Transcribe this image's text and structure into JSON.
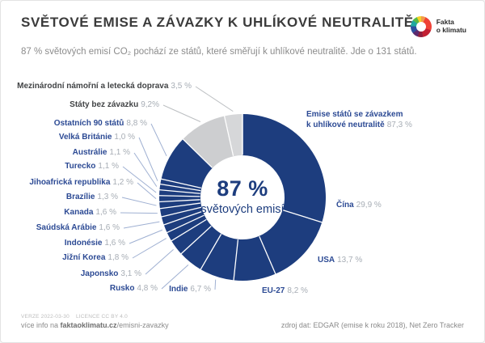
{
  "brand": {
    "name_line1": "Fakta",
    "name_line2": "o klimatu"
  },
  "header": {
    "title": "SVĚTOVÉ EMISE A ZÁVAZKY K UHLÍKOVÉ NEUTRALITĚ",
    "subtitle": "87 % světových emisí CO₂ pochází ze států, které směřují k uhlíkové neutralitě. Jde o 131 států."
  },
  "chart_data": {
    "type": "pie",
    "variant": "donut",
    "unit": "% světových emisí CO₂",
    "center_label": {
      "headline": "87 %",
      "caption": "světových emisí"
    },
    "total_annotation": {
      "name": "Emise států se závazkem\nk uhlíkové neutralitě",
      "value": 87.3,
      "value_label": "87,3 %"
    },
    "colors": {
      "committed": "#1d3d7e",
      "no_commitment": "#cdced0",
      "transport": "#d6d7d9"
    },
    "slices": [
      {
        "id": "cina",
        "name": "Čína",
        "value": 29.9,
        "value_label": "29,9 %",
        "group": "committed"
      },
      {
        "id": "usa",
        "name": "USA",
        "value": 13.7,
        "value_label": "13,7 %",
        "group": "committed"
      },
      {
        "id": "eu-27",
        "name": "EU-27",
        "value": 8.2,
        "value_label": "8,2 %",
        "group": "committed"
      },
      {
        "id": "indie",
        "name": "Indie",
        "value": 6.7,
        "value_label": "6,7 %",
        "group": "committed"
      },
      {
        "id": "rusko",
        "name": "Rusko",
        "value": 4.8,
        "value_label": "4,8 %",
        "group": "committed"
      },
      {
        "id": "japonsko",
        "name": "Japonsko",
        "value": 3.1,
        "value_label": "3,1 %",
        "group": "committed"
      },
      {
        "id": "jizni-korea",
        "name": "Jižní Korea",
        "value": 1.8,
        "value_label": "1,8 %",
        "group": "committed"
      },
      {
        "id": "indonesie",
        "name": "Indonésie",
        "value": 1.6,
        "value_label": "1,6 %",
        "group": "committed"
      },
      {
        "id": "saudska-arabie",
        "name": "Saúdská Arábie",
        "value": 1.6,
        "value_label": "1,6 %",
        "group": "committed"
      },
      {
        "id": "kanada",
        "name": "Kanada",
        "value": 1.6,
        "value_label": "1,6 %",
        "group": "committed"
      },
      {
        "id": "brazilie",
        "name": "Brazílie",
        "value": 1.3,
        "value_label": "1,3 %",
        "group": "committed"
      },
      {
        "id": "jihoafricka-republika",
        "name": "Jihoafrická republika",
        "value": 1.2,
        "value_label": "1,2 %",
        "group": "committed"
      },
      {
        "id": "turecko",
        "name": "Turecko",
        "value": 1.1,
        "value_label": "1,1 %",
        "group": "committed"
      },
      {
        "id": "australie",
        "name": "Austrálie",
        "value": 1.1,
        "value_label": "1,1 %",
        "group": "committed"
      },
      {
        "id": "velka-britanie",
        "name": "Velká Británie",
        "value": 1.0,
        "value_label": "1,0 %",
        "group": "committed"
      },
      {
        "id": "ostatnich-90-statu",
        "name": "Ostatních 90 států",
        "value": 8.8,
        "value_label": "8,8 %",
        "group": "committed"
      },
      {
        "id": "staty-bez-zavazku",
        "name": "Státy bez závazku",
        "value": 9.2,
        "value_label": "9,2%",
        "group": "no_commitment"
      },
      {
        "id": "mezinarodni-doprava",
        "name": "Mezinárodní námořní a letecká doprava",
        "value": 3.5,
        "value_label": "3,5 %",
        "group": "transport"
      }
    ]
  },
  "footer": {
    "version": "VERZE 2022-03-30",
    "license": "LICENCE CC BY 4.0",
    "info_prefix": "více info na ",
    "info_domain": "faktaoklimatu.cz",
    "info_path": "/emisni-zavazky",
    "source": "zdroj dat: EDGAR (emise k roku 2018), Net Zero Tracker"
  }
}
